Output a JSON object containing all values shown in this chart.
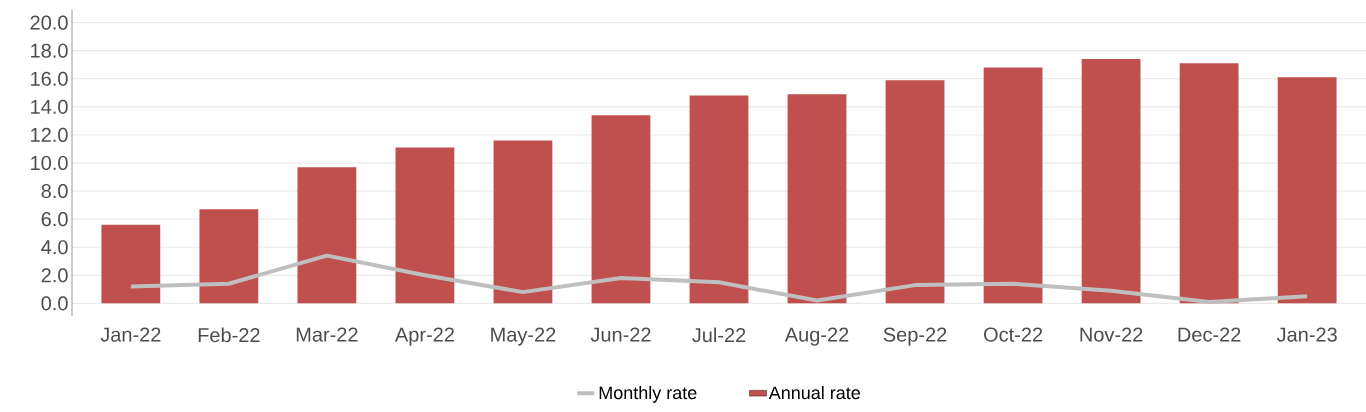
{
  "chart_data": {
    "type": "bar",
    "categories": [
      "Jan-22",
      "Feb-22",
      "Mar-22",
      "Apr-22",
      "May-22",
      "Jun-22",
      "Jul-22",
      "Aug-22",
      "Sep-22",
      "Oct-22",
      "Nov-22",
      "Dec-22",
      "Jan-23"
    ],
    "series": [
      {
        "name": "Monthly rate",
        "type": "line",
        "color": "#bfbfbf",
        "values": [
          1.2,
          1.4,
          3.4,
          2.0,
          0.8,
          1.8,
          1.5,
          0.2,
          1.3,
          1.4,
          0.9,
          0.1,
          0.5
        ]
      },
      {
        "name": "Annual rate",
        "color": "#c0504d",
        "values": [
          5.6,
          6.7,
          9.7,
          11.1,
          11.6,
          13.4,
          14.8,
          14.9,
          15.9,
          16.8,
          17.4,
          17.1,
          16.1
        ]
      }
    ],
    "ylim": [
      -0.9,
      20.9
    ],
    "yticks": [
      {
        "value": 0,
        "label": "0.0"
      },
      {
        "value": 2,
        "label": "2.0"
      },
      {
        "value": 4,
        "label": "4.0"
      },
      {
        "value": 6,
        "label": "6.0"
      },
      {
        "value": 8,
        "label": "8.0"
      },
      {
        "value": 10,
        "label": "10.0"
      },
      {
        "value": 12,
        "label": "12.0"
      },
      {
        "value": 14,
        "label": "14.0"
      },
      {
        "value": 16,
        "label": "16.0"
      },
      {
        "value": 18,
        "label": "18.0"
      },
      {
        "value": 20,
        "label": "20.0"
      }
    ],
    "grid": "y",
    "legend": "bottom",
    "marker": "none",
    "line_style": "solid"
  }
}
